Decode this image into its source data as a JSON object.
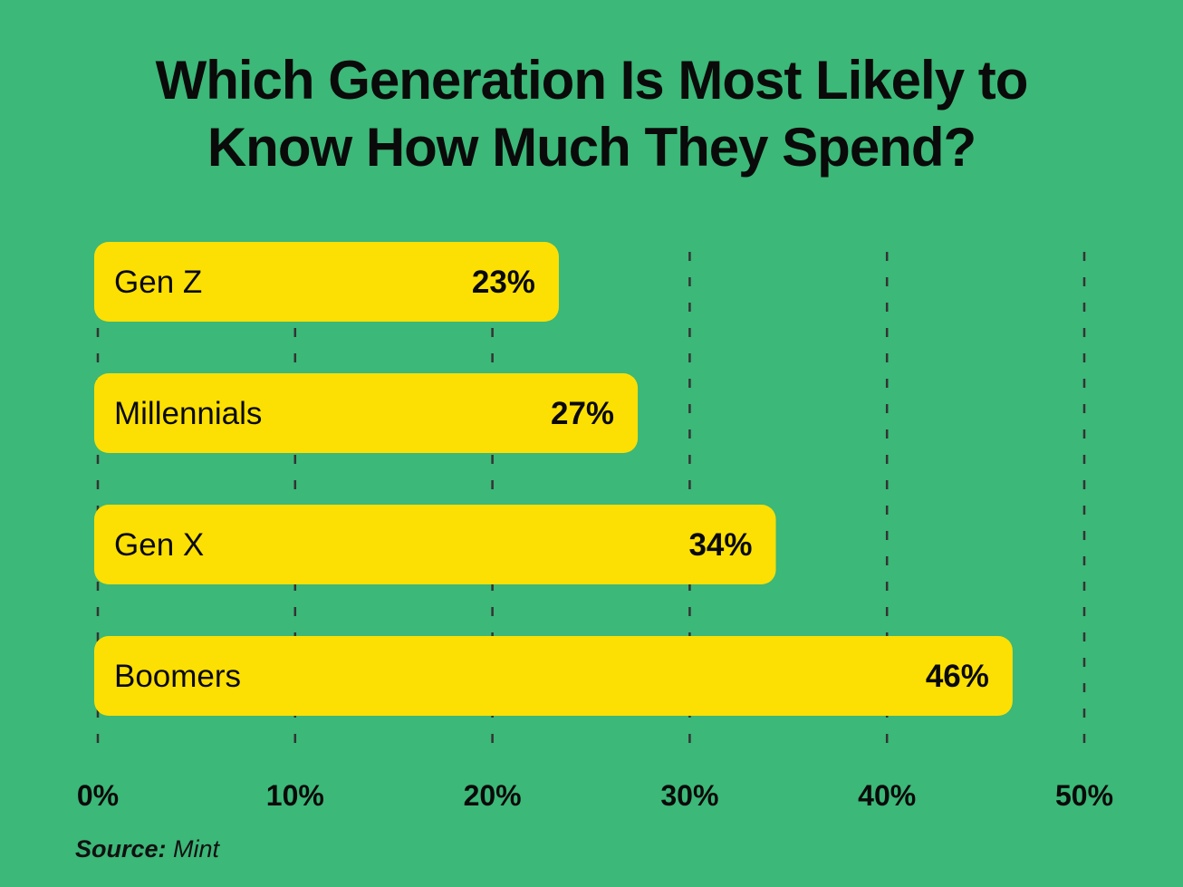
{
  "chart_data": {
    "type": "bar",
    "orientation": "horizontal",
    "title_lines": [
      "Which Generation Is Most Likely to",
      "Know How Much They Spend?"
    ],
    "categories": [
      "Gen Z",
      "Millennials",
      "Gen X",
      "Boomers"
    ],
    "values": [
      23,
      27,
      34,
      46
    ],
    "value_labels": [
      "23%",
      "27%",
      "34%",
      "46%"
    ],
    "xlim": [
      0,
      50
    ],
    "xticks": [
      0,
      10,
      20,
      30,
      40,
      50
    ],
    "xtick_labels": [
      "0%",
      "10%",
      "20%",
      "30%",
      "40%",
      "50%"
    ],
    "grid": "vertical dashed",
    "xlabel": "",
    "ylabel": "",
    "colors": {
      "background": "#3cb878",
      "bar": "#fde003",
      "text": "#0a0a0a",
      "grid": "#333333"
    }
  },
  "source": {
    "label": "Source:",
    "value": "Mint"
  }
}
